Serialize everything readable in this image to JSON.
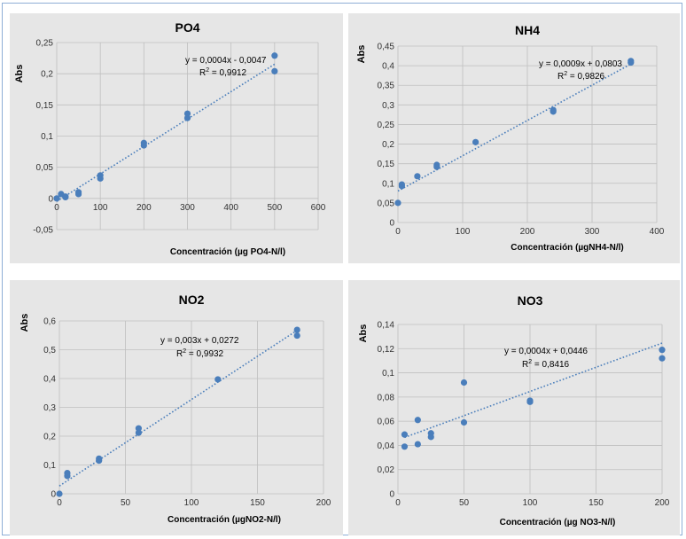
{
  "chart_data": [
    {
      "type": "scatter",
      "title": "PO4",
      "xlabel": "Concentración (µg PO4-N/l)",
      "ylabel": "Abs",
      "xlim": [
        0,
        600
      ],
      "ylim": [
        -0.05,
        0.25
      ],
      "xticks": [
        "0",
        "100",
        "200",
        "300",
        "400",
        "500",
        "600"
      ],
      "yticks": [
        "-0,05",
        "0",
        "0,05",
        "0,1",
        "0,15",
        "0,2",
        "0,25"
      ],
      "xtick_values": [
        0,
        100,
        200,
        300,
        400,
        500,
        600
      ],
      "ytick_values": [
        -0.05,
        0,
        0.05,
        0.1,
        0.15,
        0.2,
        0.25
      ],
      "equation": "y = 0,0004x - 0,0047",
      "r2_prefix": "R",
      "r2_sup": "2",
      "r2_value": " = 0,9912",
      "grid": true,
      "trend": {
        "x0": 0,
        "y0": -0.0047,
        "x1": 500,
        "y1": 0.2153
      },
      "points": [
        [
          0,
          0.0
        ],
        [
          10,
          0.007
        ],
        [
          20,
          0.003
        ],
        [
          20,
          0.002
        ],
        [
          50,
          0.01
        ],
        [
          50,
          0.007
        ],
        [
          100,
          0.037
        ],
        [
          100,
          0.032
        ],
        [
          200,
          0.089
        ],
        [
          200,
          0.085
        ],
        [
          300,
          0.136
        ],
        [
          300,
          0.129
        ],
        [
          500,
          0.229
        ],
        [
          500,
          0.204
        ]
      ]
    },
    {
      "type": "scatter",
      "title": "NH4",
      "xlabel": "Concentración (µgNH4-N/l)",
      "ylabel": "Abs",
      "xlim": [
        0,
        400
      ],
      "ylim": [
        0,
        0.45
      ],
      "xticks": [
        "0",
        "100",
        "200",
        "300",
        "400"
      ],
      "yticks": [
        "0",
        "0,05",
        "0,1",
        "0,15",
        "0,2",
        "0,25",
        "0,3",
        "0,35",
        "0,4",
        "0,45"
      ],
      "xtick_values": [
        0,
        100,
        200,
        300,
        400
      ],
      "ytick_values": [
        0,
        0.05,
        0.1,
        0.15,
        0.2,
        0.25,
        0.3,
        0.35,
        0.4,
        0.45
      ],
      "equation": "y = 0,0009x + 0,0803",
      "r2_prefix": "R",
      "r2_sup": "2",
      "r2_value": " = 0,9826",
      "grid": true,
      "trend": {
        "x0": 0,
        "y0": 0.0803,
        "x1": 360,
        "y1": 0.4043
      },
      "points": [
        [
          0,
          0.05
        ],
        [
          6,
          0.097
        ],
        [
          6,
          0.093
        ],
        [
          30,
          0.118
        ],
        [
          60,
          0.147
        ],
        [
          60,
          0.142
        ],
        [
          120,
          0.205
        ],
        [
          240,
          0.287
        ],
        [
          240,
          0.283
        ],
        [
          360,
          0.412
        ],
        [
          360,
          0.408
        ]
      ]
    },
    {
      "type": "scatter",
      "title": "NO2",
      "xlabel": "Concentración (µgNO2-N/l)",
      "ylabel": "Abs",
      "xlim": [
        0,
        200
      ],
      "ylim": [
        0,
        0.6
      ],
      "xticks": [
        "0",
        "50",
        "100",
        "150",
        "200"
      ],
      "yticks": [
        "0",
        "0,1",
        "0,2",
        "0,3",
        "0,4",
        "0,5",
        "0,6"
      ],
      "xtick_values": [
        0,
        50,
        100,
        150,
        200
      ],
      "ytick_values": [
        0,
        0.1,
        0.2,
        0.3,
        0.4,
        0.5,
        0.6
      ],
      "equation": "y = 0,003x + 0,0272",
      "r2_prefix": "R",
      "r2_sup": "2",
      "r2_value": " = 0,9932",
      "grid": true,
      "trend": {
        "x0": 0,
        "y0": 0.0272,
        "x1": 180,
        "y1": 0.5672
      },
      "points": [
        [
          0,
          0.0
        ],
        [
          6,
          0.072
        ],
        [
          6,
          0.062
        ],
        [
          30,
          0.122
        ],
        [
          30,
          0.115
        ],
        [
          60,
          0.227
        ],
        [
          60,
          0.212
        ],
        [
          120,
          0.397
        ],
        [
          180,
          0.569
        ],
        [
          180,
          0.549
        ]
      ]
    },
    {
      "type": "scatter",
      "title": "NO3",
      "xlabel": "Concentración (µg NO3-N/l)",
      "ylabel": "Abs",
      "xlim": [
        0,
        200
      ],
      "ylim": [
        0,
        0.14
      ],
      "xticks": [
        "0",
        "50",
        "100",
        "150",
        "200"
      ],
      "yticks": [
        "0",
        "0,02",
        "0,04",
        "0,06",
        "0,08",
        "0,1",
        "0,12",
        "0,14"
      ],
      "xtick_values": [
        0,
        50,
        100,
        150,
        200
      ],
      "ytick_values": [
        0,
        0.02,
        0.04,
        0.06,
        0.08,
        0.1,
        0.12,
        0.14
      ],
      "equation": "y = 0,0004x + 0,0446",
      "r2_prefix": "R",
      "r2_sup": "2",
      "r2_value": " = 0,8416",
      "grid": true,
      "trend": {
        "x0": 5,
        "y0": 0.0466,
        "x1": 200,
        "y1": 0.1246
      },
      "points": [
        [
          5,
          0.049
        ],
        [
          5,
          0.039
        ],
        [
          15,
          0.061
        ],
        [
          15,
          0.041
        ],
        [
          25,
          0.05
        ],
        [
          25,
          0.047
        ],
        [
          50,
          0.092
        ],
        [
          50,
          0.059
        ],
        [
          100,
          0.077
        ],
        [
          100,
          0.076
        ],
        [
          200,
          0.119
        ],
        [
          200,
          0.112
        ]
      ]
    }
  ]
}
